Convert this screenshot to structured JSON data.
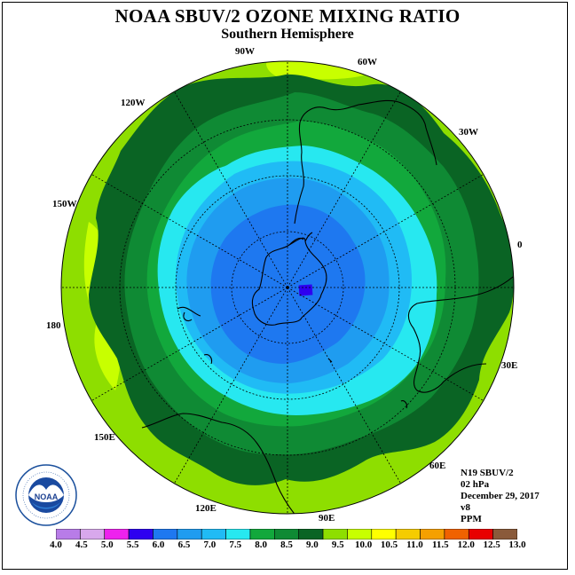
{
  "title": "NOAA SBUV/2 OZONE MIXING RATIO",
  "subtitle": "Southern Hemisphere",
  "longitude_labels": [
    "90W",
    "60W",
    "30W",
    "0",
    "30E",
    "60E",
    "90E",
    "120E",
    "150E",
    "180",
    "150W",
    "120W"
  ],
  "info": {
    "satellite": "N19 SBUV/2",
    "level": "02 hPa",
    "date": "December 29, 2017",
    "version": "v8",
    "units": "PPM"
  },
  "colorbar": {
    "ticks": [
      "4.0",
      "4.5",
      "5.0",
      "5.5",
      "6.0",
      "6.5",
      "7.0",
      "7.5",
      "8.0",
      "8.5",
      "9.0",
      "9.5",
      "10.0",
      "10.5",
      "11.0",
      "11.5",
      "12.0",
      "12.5",
      "13.0"
    ],
    "colors": [
      "#b87ce8",
      "#d8a8ec",
      "#ee22ee",
      "#2e00f0",
      "#1e78f0",
      "#1f9cf0",
      "#20bbf5",
      "#27e8f0",
      "#12a83c",
      "#0f8a34",
      "#0a6424",
      "#8ede00",
      "#c8ff00",
      "#ffff00",
      "#f5cc00",
      "#f5a000",
      "#f06200",
      "#e80000",
      "#8a5a3a"
    ]
  },
  "map": {
    "field_levels_ppm": [
      6.0,
      6.5,
      7.0,
      7.5,
      8.0,
      8.5,
      9.0,
      9.5,
      10.0
    ],
    "colors": {
      "background": "#ffffff",
      "level_9_5": "#8ede00",
      "level_10": "#c8ff00",
      "level_9": "#0a6424",
      "level_8_5": "#0f8a34",
      "level_8": "#12a83c",
      "level_7_5": "#27e8f0",
      "level_7": "#20bbf5",
      "level_6_5": "#1f9cf0",
      "level_6": "#1e78f0",
      "minimum_5_5": "#2e00f0"
    }
  }
}
